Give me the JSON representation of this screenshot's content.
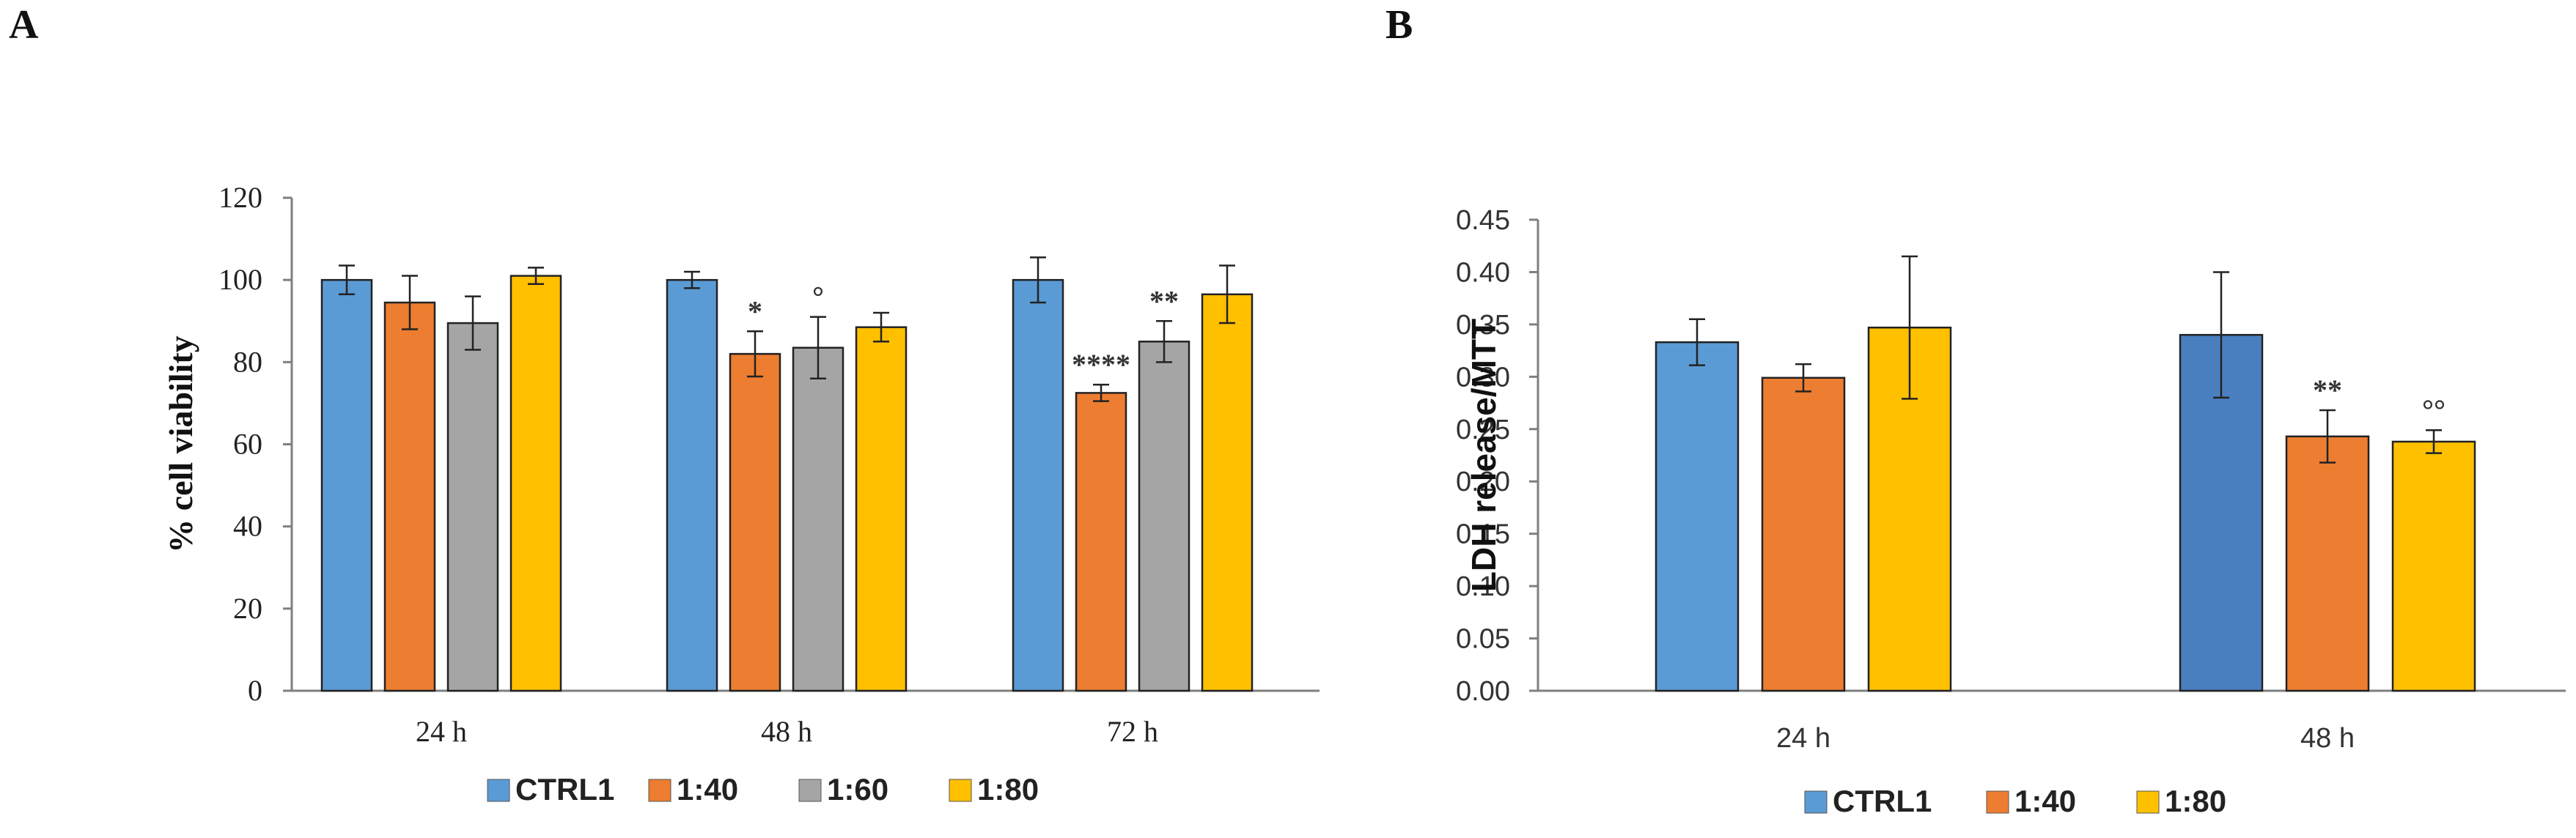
{
  "chart_data": [
    {
      "panel": "A",
      "type": "bar",
      "categories": [
        "24 h",
        "48 h",
        "72 h"
      ],
      "ylabel": "% cell viability",
      "ylim": [
        0,
        120
      ],
      "yticks": [
        0,
        20,
        40,
        60,
        80,
        100,
        120
      ],
      "grid": false,
      "legend_position": "bottom",
      "series": [
        {
          "name": "CTRL1",
          "color": "#5b9bd5",
          "values": [
            100,
            100,
            100
          ],
          "errors": [
            3.5,
            2,
            5.5
          ],
          "annotations": [
            "",
            "",
            ""
          ]
        },
        {
          "name": "1:40",
          "color": "#ed7d31",
          "values": [
            94.5,
            82,
            72.5
          ],
          "errors": [
            6.5,
            5.5,
            2
          ],
          "annotations": [
            "",
            "*",
            "****"
          ]
        },
        {
          "name": "1:60",
          "color": "#a5a5a5",
          "values": [
            89.5,
            83.5,
            85
          ],
          "errors": [
            6.5,
            7.5,
            5
          ],
          "annotations": [
            "",
            "°",
            "**"
          ]
        },
        {
          "name": "1:80",
          "color": "#ffc000",
          "values": [
            101,
            88.5,
            96.5
          ],
          "errors": [
            2,
            3.5,
            7
          ],
          "annotations": [
            "",
            "",
            ""
          ]
        }
      ]
    },
    {
      "panel": "B",
      "type": "bar",
      "categories": [
        "24 h",
        "48 h"
      ],
      "ylabel": "LDH release/MTT",
      "ylim": [
        0,
        0.45
      ],
      "yticks": [
        "0.00",
        "0.05",
        "0.10",
        "0.15",
        "0.20",
        "0.25",
        "0.30",
        "0.35",
        "0.40",
        "0.45"
      ],
      "grid": false,
      "legend_position": "bottom",
      "series": [
        {
          "name": "CTRL1",
          "color": "#5b9bd5",
          "color_48h": "#4a7fbf",
          "values": [
            0.333,
            0.34
          ],
          "errors": [
            0.022,
            0.06
          ],
          "annotations": [
            "",
            ""
          ]
        },
        {
          "name": "1:40",
          "color": "#ed7d31",
          "values": [
            0.299,
            0.243
          ],
          "errors": [
            0.013,
            0.025
          ],
          "annotations": [
            "",
            "**"
          ]
        },
        {
          "name": "1:80",
          "color": "#ffc000",
          "values": [
            0.347,
            0.238
          ],
          "errors": [
            0.068,
            0.011
          ],
          "annotations": [
            "",
            "°°"
          ]
        }
      ]
    }
  ]
}
